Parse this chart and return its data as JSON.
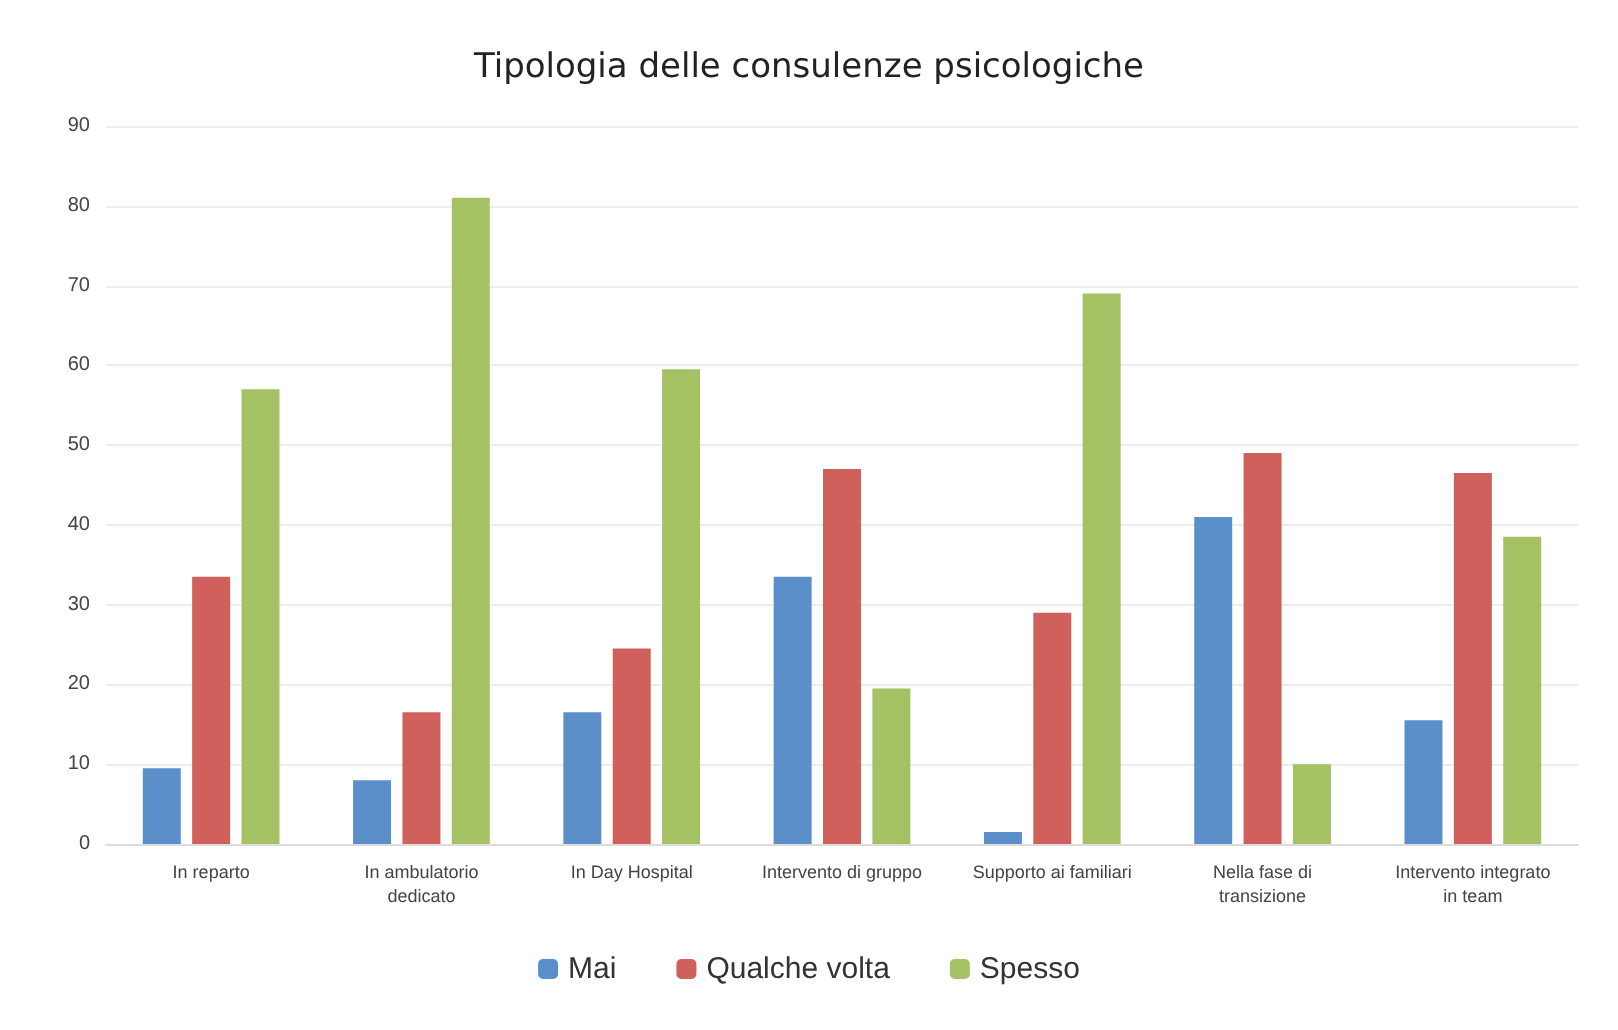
{
  "chart_data": {
    "type": "bar",
    "title": "Tipologia delle consulenze psicologiche",
    "categories": [
      "In reparto",
      "In ambulatorio\ndedicato",
      "In Day Hospital",
      "Intervento di gruppo",
      "Supporto ai familiari",
      "Nella fase di\ntransizione",
      "Intervento integrato\nin team"
    ],
    "series": [
      {
        "name": "Mai",
        "color": "#5b8fc9",
        "values": [
          9.5,
          8,
          16.5,
          33.5,
          1.5,
          41,
          15.5
        ]
      },
      {
        "name": "Qualche volta",
        "color": "#d0605c",
        "values": [
          33.5,
          16.5,
          24.5,
          47,
          29,
          49,
          46.5
        ]
      },
      {
        "name": "Spesso",
        "color": "#a4c264",
        "values": [
          57,
          81,
          59.5,
          19.5,
          69,
          10,
          38.5
        ]
      }
    ],
    "ylim": [
      0,
      90
    ],
    "yticks": [
      0,
      10,
      20,
      30,
      40,
      50,
      60,
      70,
      80,
      90
    ],
    "grid": "y",
    "legend": "bottom"
  }
}
